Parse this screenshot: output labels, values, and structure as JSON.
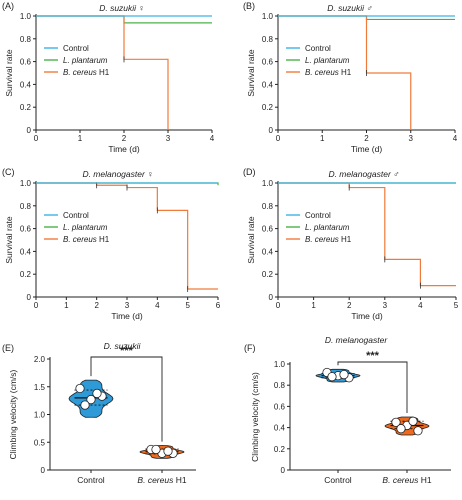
{
  "colors": {
    "control": "#3cb4e6",
    "plantarum": "#4bb04b",
    "cereus": "#f07a3a",
    "violin_control": "#2f9ad8",
    "violin_cereus": "#ef6a1e"
  },
  "chart_data": [
    {
      "panel": "(A)",
      "type": "line",
      "title_italic": "D. suzukii",
      "title_symbol": "♀",
      "xlabel": "Time (d)",
      "ylabel": "Survival rate",
      "xlim": [
        0,
        4
      ],
      "ylim": [
        0,
        1.0
      ],
      "x_ticks": [
        "0",
        "1",
        "2",
        "3",
        "4"
      ],
      "y_ticks": [
        "0",
        "0.2",
        "0.4",
        "0.6",
        "0.8",
        "1.0"
      ],
      "legend_placement": "middle-left",
      "series": [
        {
          "name_italic": "",
          "name_plain": "Control",
          "color_key": "control",
          "steps": [
            [
              0,
              1.0
            ],
            [
              4,
              1.0
            ]
          ]
        },
        {
          "name_italic": "L. plantarum",
          "name_plain": "",
          "color_key": "plantarum",
          "steps": [
            [
              0,
              1.0
            ],
            [
              2,
              0.94
            ],
            [
              4,
              0.94
            ]
          ]
        },
        {
          "name_italic": "B. cereus",
          "name_plain": " H1",
          "color_key": "cereus",
          "steps": [
            [
              0,
              1.0
            ],
            [
              2,
              0.62
            ],
            [
              3,
              0.0
            ]
          ]
        }
      ]
    },
    {
      "panel": "(B)",
      "type": "line",
      "title_italic": "D. suzukii",
      "title_symbol": "♂",
      "xlabel": "Time (d)",
      "ylabel": "Survival rate",
      "xlim": [
        0,
        4
      ],
      "ylim": [
        0,
        1.0
      ],
      "x_ticks": [
        "0",
        "1",
        "2",
        "3",
        "4"
      ],
      "y_ticks": [
        "0",
        "0.2",
        "0.4",
        "0.6",
        "0.8",
        "1.0"
      ],
      "legend_placement": "middle-left",
      "series": [
        {
          "name_italic": "",
          "name_plain": "Control",
          "color_key": "control",
          "steps": [
            [
              0,
              1.0
            ],
            [
              4,
              1.0
            ]
          ]
        },
        {
          "name_italic": "L. plantarum",
          "name_plain": "",
          "color_key": "plantarum",
          "steps": [
            [
              0,
              1.0
            ],
            [
              2,
              0.97
            ],
            [
              4,
              0.97
            ]
          ]
        },
        {
          "name_italic": "B. cereus",
          "name_plain": " H1",
          "color_key": "cereus",
          "steps": [
            [
              0,
              1.0
            ],
            [
              2,
              0.5
            ],
            [
              3,
              0.0
            ]
          ]
        }
      ]
    },
    {
      "panel": "(C)",
      "type": "line",
      "title_italic": "D. melanogaster",
      "title_symbol": "♀",
      "xlabel": "Time (d)",
      "ylabel": "Survival rate",
      "xlim": [
        0,
        6
      ],
      "ylim": [
        0,
        1.0
      ],
      "x_ticks": [
        "0",
        "1",
        "2",
        "3",
        "4",
        "5",
        "6"
      ],
      "y_ticks": [
        "0",
        "0.2",
        "0.4",
        "0.6",
        "0.8",
        "1.0"
      ],
      "legend_placement": "middle-left",
      "series": [
        {
          "name_italic": "",
          "name_plain": "Control",
          "color_key": "control",
          "steps": [
            [
              0,
              1.0
            ],
            [
              6,
              1.0
            ]
          ]
        },
        {
          "name_italic": "L. plantarum",
          "name_plain": "",
          "color_key": "plantarum",
          "steps": [
            [
              0,
              1.0
            ],
            [
              6,
              0.98
            ]
          ]
        },
        {
          "name_italic": "B. cereus",
          "name_plain": " H1",
          "color_key": "cereus",
          "steps": [
            [
              0,
              1.0
            ],
            [
              2,
              0.98
            ],
            [
              3,
              0.96
            ],
            [
              4,
              0.76
            ],
            [
              5,
              0.07
            ],
            [
              6,
              0.07
            ]
          ]
        }
      ]
    },
    {
      "panel": "(D)",
      "type": "line",
      "title_italic": "D. melanogaster",
      "title_symbol": "♂",
      "xlabel": "Time (d)",
      "ylabel": "Survival rate",
      "xlim": [
        0,
        5
      ],
      "ylim": [
        0,
        1.0
      ],
      "x_ticks": [
        "0",
        "1",
        "2",
        "3",
        "4",
        "5"
      ],
      "y_ticks": [
        "0",
        "0.2",
        "0.4",
        "0.6",
        "0.8",
        "1.0"
      ],
      "legend_placement": "middle-left",
      "series": [
        {
          "name_italic": "",
          "name_plain": "Control",
          "color_key": "control",
          "steps": [
            [
              0,
              1.0
            ],
            [
              5,
              1.0
            ]
          ]
        },
        {
          "name_italic": "L. plantarum",
          "name_plain": "",
          "color_key": "plantarum",
          "steps": [
            [
              0,
              1.0
            ],
            [
              5,
              1.0
            ]
          ]
        },
        {
          "name_italic": "B. cereus",
          "name_plain": " H1",
          "color_key": "cereus",
          "steps": [
            [
              0,
              1.0
            ],
            [
              2,
              0.96
            ],
            [
              3,
              0.33
            ],
            [
              4,
              0.1
            ],
            [
              5,
              0.1
            ]
          ]
        }
      ]
    },
    {
      "panel": "(E)",
      "type": "violin",
      "title_italic": "D. suzukii",
      "ylabel": "Climbing velocity (cm/s)",
      "ylim": [
        0,
        2.0
      ],
      "y_ticks": [
        "0",
        "0.5",
        "1.0",
        "1.5",
        "2.0"
      ],
      "significance": "***",
      "groups": [
        {
          "label_italic": "",
          "label_plain": "Control",
          "color_key": "violin_control",
          "points": [
            1.47,
            1.27,
            1.33,
            1.17,
            1.38
          ],
          "median": 1.3,
          "q1": 1.17,
          "q3": 1.44,
          "min": 0.95,
          "max": 1.62
        },
        {
          "label_italic": "B. cereus",
          "label_plain": " H1",
          "color_key": "violin_cereus",
          "points": [
            0.37,
            0.3,
            0.3,
            0.37,
            0.34
          ],
          "median": 0.33,
          "q1": 0.29,
          "q3": 0.38,
          "min": 0.21,
          "max": 0.44
        }
      ]
    },
    {
      "panel": "(F)",
      "type": "violin",
      "title_italic": "D. melanogaster",
      "ylabel": "Climbing velocity (cm/s)",
      "ylim": [
        0,
        1.0
      ],
      "y_ticks": [
        "0",
        "0.2",
        "0.4",
        "0.6",
        "0.8",
        "1.0"
      ],
      "significance": "***",
      "groups": [
        {
          "label_italic": "",
          "label_plain": "Control",
          "color_key": "violin_control",
          "points": [
            0.92,
            0.89,
            0.87,
            0.88,
            0.9
          ],
          "median": 0.89,
          "q1": 0.87,
          "q3": 0.91,
          "min": 0.83,
          "max": 0.95
        },
        {
          "label_italic": "B. cereus",
          "label_plain": " H1",
          "color_key": "violin_cereus",
          "points": [
            0.45,
            0.42,
            0.37,
            0.39,
            0.46
          ],
          "median": 0.42,
          "q1": 0.39,
          "q3": 0.46,
          "min": 0.33,
          "max": 0.5
        }
      ]
    }
  ]
}
